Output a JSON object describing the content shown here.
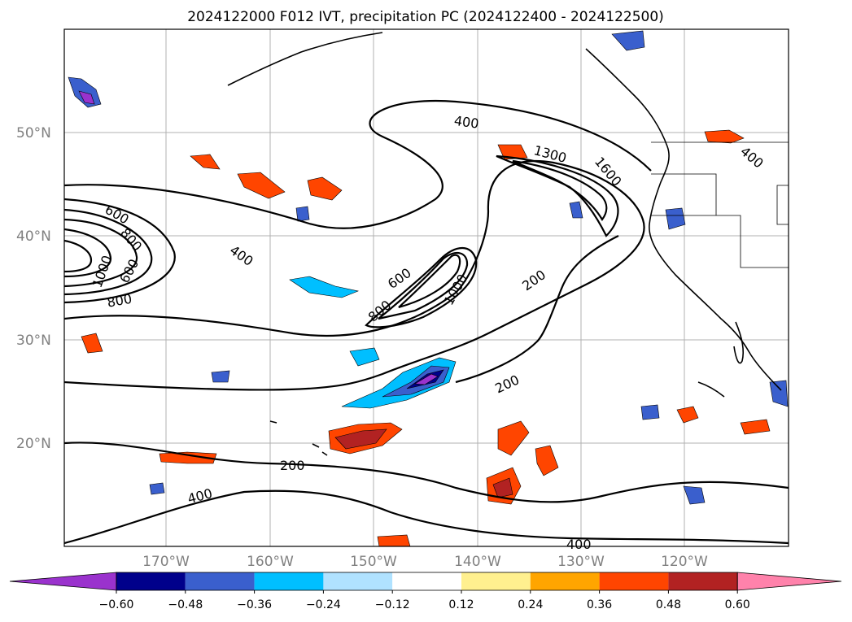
{
  "title": "2024122000 F012 IVT, precipitation PC (2024122400 - 2024122500)",
  "lat_labels": [
    "50°N",
    "40°N",
    "30°N",
    "20°N"
  ],
  "lon_labels": [
    "170°W",
    "160°W",
    "150°W",
    "140°W",
    "130°W",
    "120°W"
  ],
  "colorbar": {
    "ticks": [
      "−0.60",
      "−0.48",
      "−0.36",
      "−0.24",
      "−0.12",
      "0.12",
      "0.24",
      "0.36",
      "0.48",
      "0.60"
    ],
    "colors": [
      "#9a32cd",
      "#00008b",
      "#3a5fcd",
      "#00bfff",
      "#b0e2ff",
      "#ffffff",
      "#fff08f",
      "#ffa500",
      "#ff4500",
      "#b22222",
      "#ff82ab"
    ]
  },
  "contour_labels": [
    "400",
    "600",
    "800",
    "600",
    "1000",
    "1300",
    "1600",
    "800",
    "400",
    "600",
    "800",
    "1000",
    "200",
    "200",
    "200",
    "400",
    "400",
    "400"
  ],
  "colors": {
    "grid": "#b0b0b0",
    "contour": "#000000",
    "tick_label": "#808080"
  }
}
